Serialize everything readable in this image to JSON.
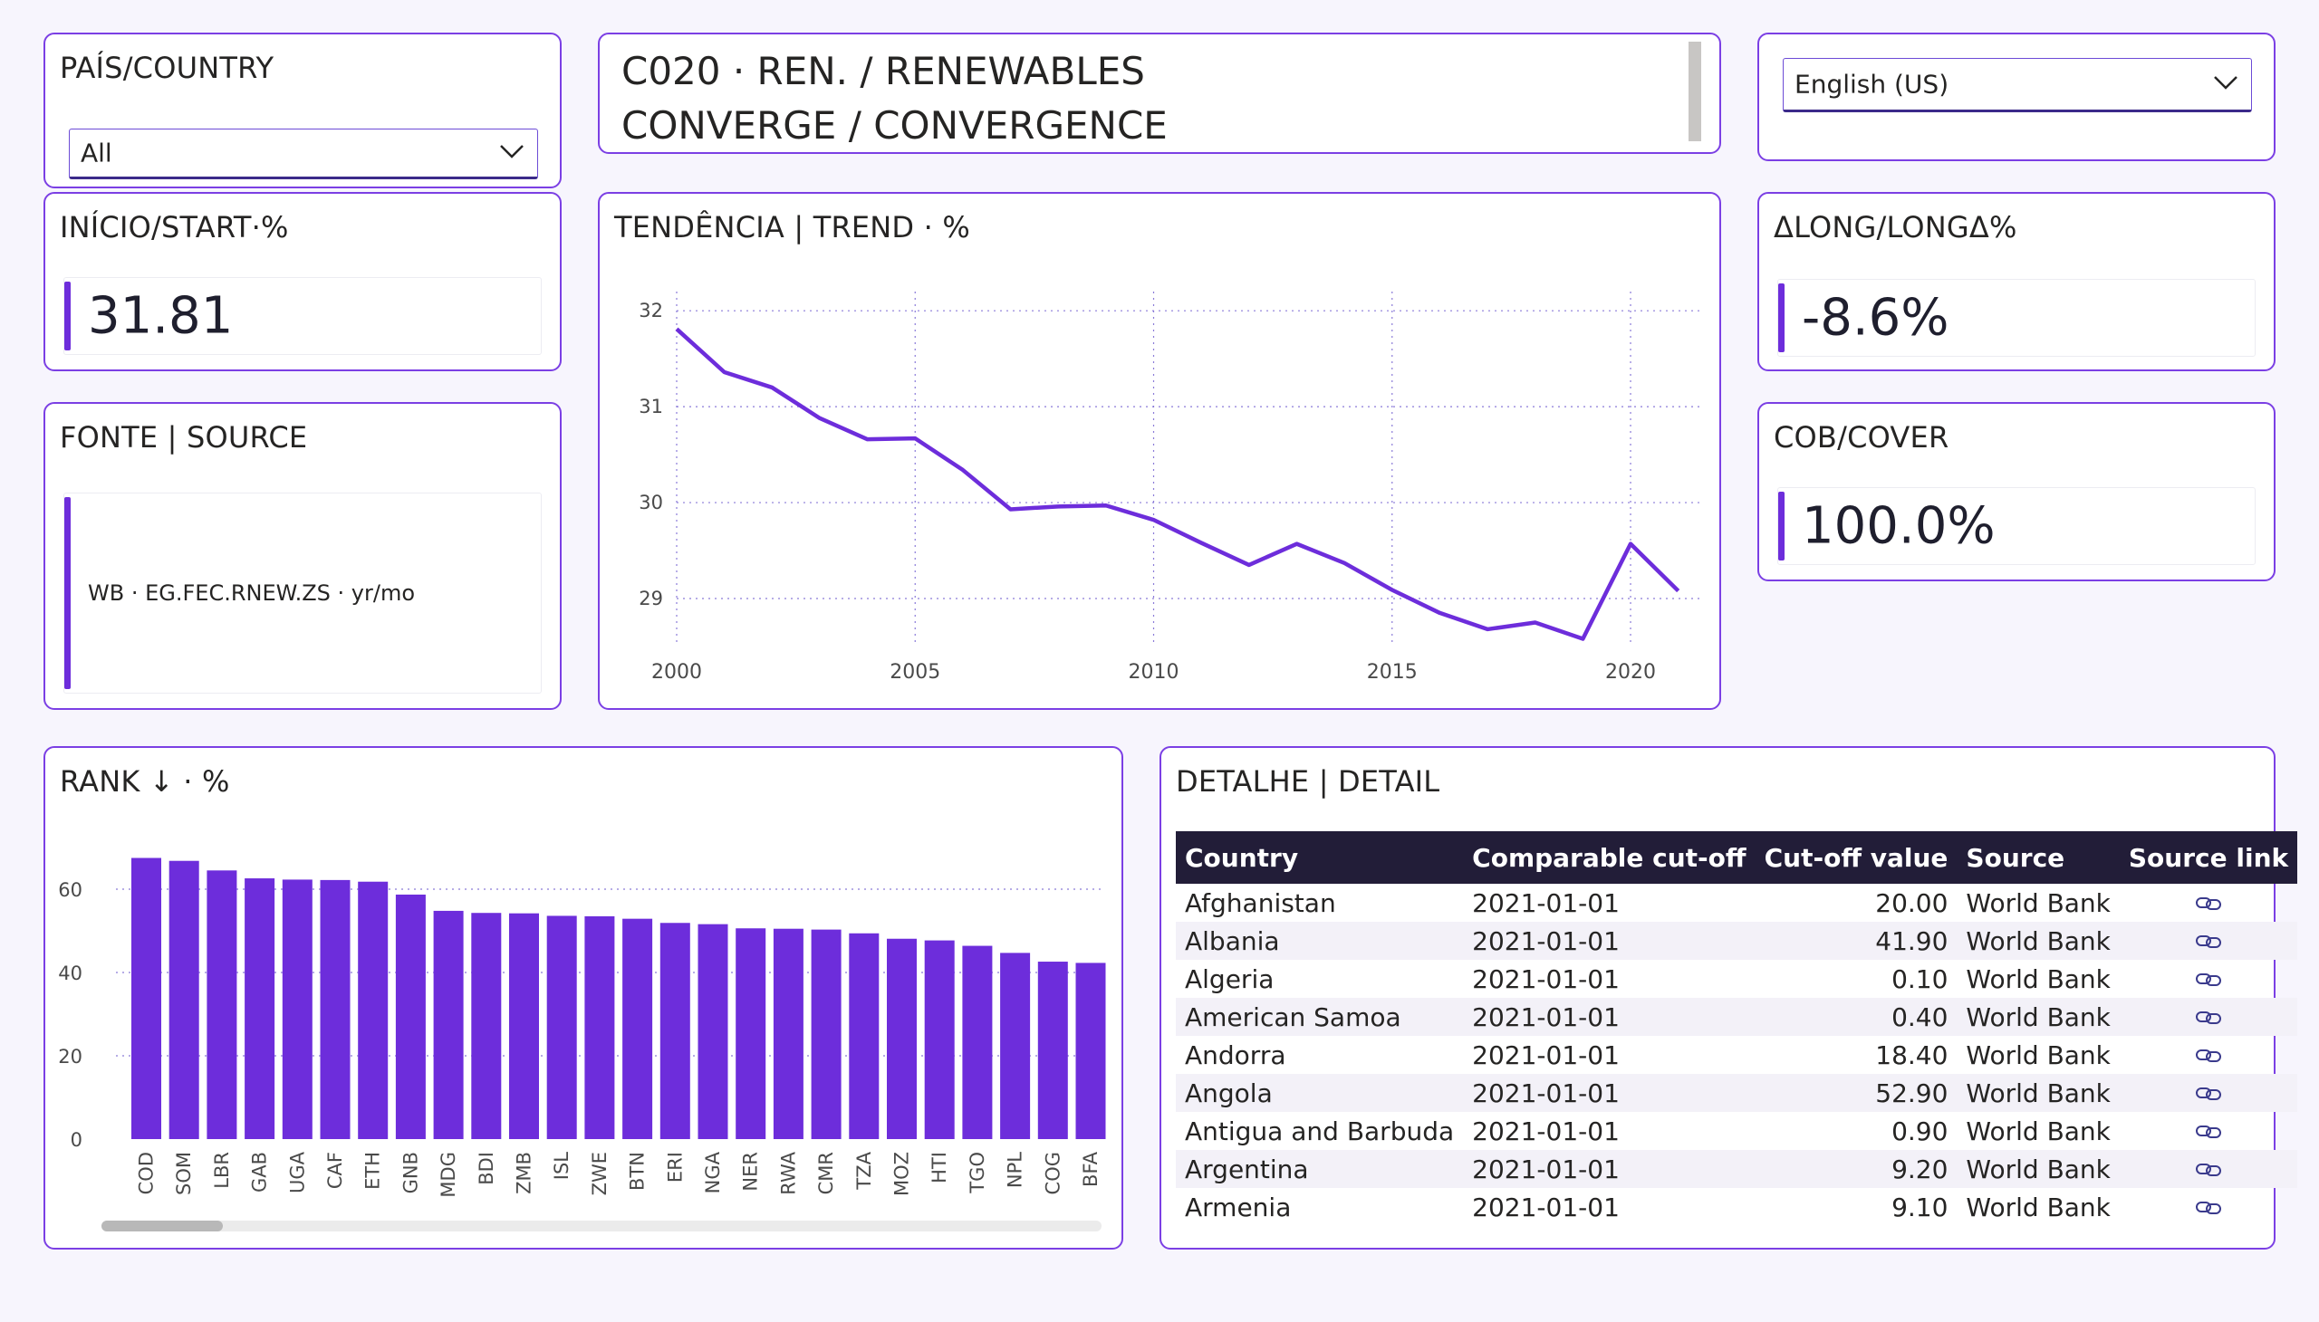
{
  "country_filter": {
    "title": "PAÍS/COUNTRY",
    "selected": "All"
  },
  "header": {
    "title_line1": "C020 · REN. / RENEWABLES",
    "title_line2": "CONVERGE / CONVERGENCE"
  },
  "language": {
    "selected": "English (US)"
  },
  "start_card": {
    "title": "INÍCIO/START·%",
    "value": "31.81"
  },
  "source_card": {
    "title": "FONTE | SOURCE",
    "text": "WB · EG.FEC.RNEW.ZS · yr/mo"
  },
  "long_card": {
    "title": "ΔLONG/LONGΔ%",
    "value": "-8.6%"
  },
  "cover_card": {
    "title": "COB/COVER",
    "value": "100.0%"
  },
  "trend_card": {
    "title": "TENDÊNCIA | TREND · %"
  },
  "rank_card": {
    "title": "RANK ↓ · %"
  },
  "detail_card": {
    "title": "DETALHE | DETAIL",
    "columns": [
      "Country",
      "Comparable cut-off",
      "Cut-off value",
      "Source",
      "Source link"
    ],
    "rows": [
      [
        "Afghanistan",
        "2021-01-01",
        "20.00",
        "World Bank"
      ],
      [
        "Albania",
        "2021-01-01",
        "41.90",
        "World Bank"
      ],
      [
        "Algeria",
        "2021-01-01",
        "0.10",
        "World Bank"
      ],
      [
        "American Samoa",
        "2021-01-01",
        "0.40",
        "World Bank"
      ],
      [
        "Andorra",
        "2021-01-01",
        "18.40",
        "World Bank"
      ],
      [
        "Angola",
        "2021-01-01",
        "52.90",
        "World Bank"
      ],
      [
        "Antigua and Barbuda",
        "2021-01-01",
        "0.90",
        "World Bank"
      ],
      [
        "Argentina",
        "2021-01-01",
        "9.20",
        "World Bank"
      ],
      [
        "Armenia",
        "2021-01-01",
        "9.10",
        "World Bank"
      ]
    ]
  },
  "colors": {
    "accent": "#7b3fe4",
    "series": "#6d2ddb",
    "header_bg": "#221d38"
  },
  "icons": {
    "dropdown": "chevron-down-icon",
    "link": "link-icon"
  },
  "chart_data": [
    {
      "type": "line",
      "x": [
        2000,
        2001,
        2002,
        2003,
        2004,
        2005,
        2006,
        2007,
        2008,
        2009,
        2010,
        2011,
        2012,
        2013,
        2014,
        2015,
        2016,
        2017,
        2018,
        2019,
        2020,
        2021
      ],
      "values": [
        31.81,
        31.36,
        31.2,
        30.88,
        30.66,
        30.67,
        30.34,
        29.93,
        29.96,
        29.97,
        29.82,
        29.58,
        29.35,
        29.57,
        29.37,
        29.09,
        28.85,
        28.68,
        28.75,
        28.58,
        29.57,
        29.08
      ],
      "xticks": [
        2000,
        2005,
        2010,
        2015,
        2020
      ],
      "yticks": [
        29,
        30,
        31,
        32
      ],
      "ylim": [
        28.5,
        32.2
      ],
      "xlim": [
        2000,
        2021.5
      ],
      "grid": true
    },
    {
      "type": "bar",
      "categories": [
        "COD",
        "SOM",
        "LBR",
        "GAB",
        "UGA",
        "CAF",
        "ETH",
        "GNB",
        "MDG",
        "BDI",
        "ZMB",
        "ISL",
        "ZWE",
        "BTN",
        "ERI",
        "NGA",
        "NER",
        "RWA",
        "CMR",
        "TZA",
        "MOZ",
        "HTI",
        "TGO",
        "NPL",
        "COG",
        "BFA"
      ],
      "values": [
        67.5,
        66.8,
        64.5,
        62.6,
        62.3,
        62.2,
        61.8,
        58.7,
        54.8,
        54.3,
        54.2,
        53.6,
        53.5,
        52.9,
        51.9,
        51.6,
        50.6,
        50.5,
        50.3,
        49.4,
        48.1,
        47.7,
        46.4,
        44.7,
        42.6,
        42.3
      ],
      "yticks": [
        0,
        20,
        40,
        60
      ],
      "ylim": [
        0,
        70
      ],
      "grid": true
    }
  ]
}
